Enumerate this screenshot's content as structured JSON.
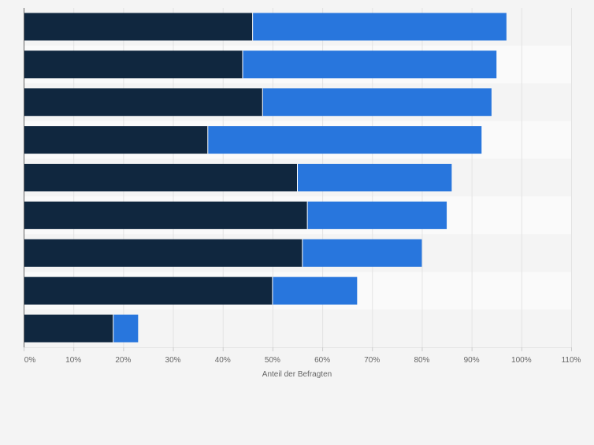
{
  "chart_data": {
    "type": "bar",
    "orientation": "horizontal",
    "stacked": true,
    "categories": [
      "",
      "",
      "",
      "",
      "",
      "",
      "",
      "",
      ""
    ],
    "series": [
      {
        "values": [
          46,
          44,
          48,
          37,
          55,
          57,
          56,
          50,
          18
        ]
      },
      {
        "values": [
          51,
          51,
          46,
          55,
          31,
          28,
          24,
          17,
          5
        ]
      }
    ],
    "colors": [
      "#10273f",
      "#2876dd"
    ],
    "xlabel": "Anteil der Befragten",
    "xlim": [
      0,
      110
    ],
    "xticks": [
      0,
      10,
      20,
      30,
      40,
      50,
      60,
      70,
      80,
      90,
      100,
      110
    ],
    "xtick_labels": [
      "0%",
      "10%",
      "20%",
      "30%",
      "40%",
      "50%",
      "60%",
      "70%",
      "80%",
      "90%",
      "100%",
      "110%"
    ],
    "grid": true,
    "legend": "none"
  }
}
